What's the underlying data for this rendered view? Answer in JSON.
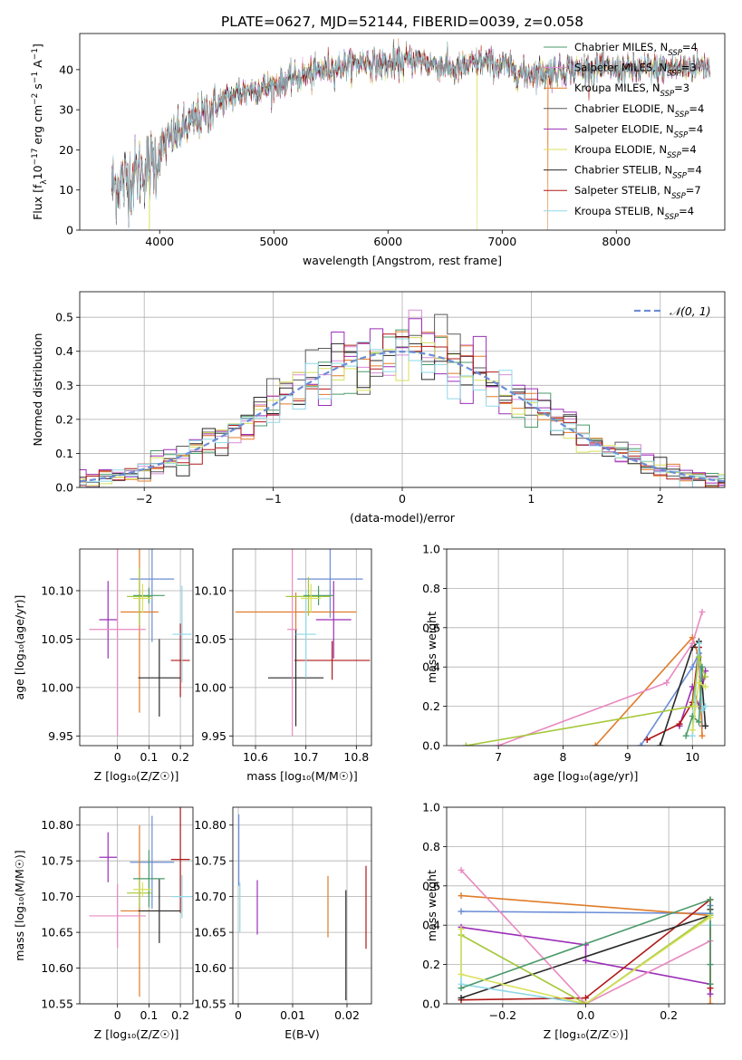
{
  "figure_title": "PLATE=0627, MJD=52144, FIBERID=0039, z=0.058",
  "colors": {
    "series": [
      "#4a9a6a",
      "#d98ad6",
      "#e07b28",
      "#5a5a5a",
      "#9b2fb8",
      "#d8e05a",
      "#2a2a2a",
      "#b01818",
      "#8fd8e8"
    ],
    "errorbars": [
      "#6b8ed6",
      "#e07b28",
      "#9b2fb8",
      "#b01818",
      "#2a2a2a",
      "#8fd8e8",
      "#e88ac0",
      "#a6c83a",
      "#4a9a6a",
      "#d8e05a"
    ],
    "gaussian": "#6b8ed6",
    "grid": "#b0b0b0"
  },
  "chart_data": [
    {
      "id": "spectrum",
      "type": "line",
      "title": "PLATE=0627, MJD=52144, FIBERID=0039, z=0.058",
      "xlabel": "wavelength [Angstrom, rest frame]",
      "ylabel_parts": [
        "Flux [f",
        "λ",
        "10",
        "−17",
        " erg cm",
        "−2",
        " s",
        "−1",
        " A",
        "−1",
        "]"
      ],
      "xlim": [
        3300,
        8950
      ],
      "ylim": [
        0,
        49
      ],
      "xticks": [
        4000,
        5000,
        6000,
        7000,
        8000
      ],
      "yticks": [
        0,
        10,
        20,
        30,
        40
      ],
      "grid": false,
      "legend_position": "upper-right",
      "continuum_anchors": {
        "x": [
          3580,
          3700,
          3850,
          3950,
          4050,
          4150,
          4300,
          4450,
          4600,
          4800,
          5000,
          5200,
          5400,
          5600,
          5800,
          6000,
          6200,
          6400,
          6600,
          6800,
          7000,
          7200,
          7400,
          7600,
          7800,
          8000,
          8200,
          8400,
          8600,
          8800
        ],
        "y": [
          11,
          12.5,
          15,
          17,
          22,
          24,
          27,
          30,
          33,
          35,
          36,
          38,
          39.5,
          41,
          42,
          41,
          42.5,
          41.5,
          40,
          42,
          41,
          39,
          39.5,
          40,
          40.5,
          40,
          40,
          40.5,
          40.5,
          41
        ]
      },
      "dropouts": [
        {
          "series": 5,
          "x": 3910,
          "y": 0
        },
        {
          "series": 5,
          "x": 6780,
          "y": 0
        },
        {
          "series": 2,
          "x": 7400,
          "y": 0
        }
      ],
      "legend": [
        {
          "label": "Chabrier MILES, N",
          "sub": "SSP",
          "count": "=4"
        },
        {
          "label": "Salpeter MILES, N",
          "sub": "SSP",
          "count": "=3"
        },
        {
          "label": "Kroupa MILES, N",
          "sub": "SSP",
          "count": "=3"
        },
        {
          "label": "Chabrier ELODIE, N",
          "sub": "SSP",
          "count": "=4"
        },
        {
          "label": "Salpeter ELODIE, N",
          "sub": "SSP",
          "count": "=4"
        },
        {
          "label": "Kroupa ELODIE, N",
          "sub": "SSP",
          "count": "=4"
        },
        {
          "label": "Chabrier STELIB, N",
          "sub": "SSP",
          "count": "=4"
        },
        {
          "label": "Salpeter STELIB, N",
          "sub": "SSP",
          "count": "=7"
        },
        {
          "label": "Kroupa STELIB, N",
          "sub": "SSP",
          "count": "=4"
        }
      ]
    },
    {
      "id": "residuals",
      "type": "histogram",
      "xlabel": "(data-model)/error",
      "ylabel": "Normed distribution",
      "xlim": [
        -2.5,
        2.5
      ],
      "ylim": [
        0,
        0.575
      ],
      "xticks": [
        -2,
        -1,
        0,
        1,
        2
      ],
      "xtick_labels": [
        "−2",
        "−1",
        "0",
        "1",
        "2"
      ],
      "yticks": [
        0.0,
        0.1,
        0.2,
        0.3,
        0.4,
        0.5
      ],
      "grid": true,
      "legend_position": "upper-right",
      "gaussian_label": "𝒩(0, 1)",
      "bin_width": 0.1
    },
    {
      "id": "age-vs-Z",
      "type": "errorbar",
      "xlabel": "Z [log₁₀(Z/Z☉)]",
      "ylabel": "age  [log₁₀(age/yr)]",
      "xlim": [
        -0.12,
        0.24
      ],
      "ylim": [
        9.94,
        10.143
      ],
      "xticks": [
        0.0,
        0.1,
        0.2
      ],
      "yticks": [
        9.95,
        10.0,
        10.05,
        10.1
      ],
      "grid": true,
      "points": [
        {
          "x": 0.11,
          "y": 10.112,
          "xerr": 0.07,
          "yerr": 0.065
        },
        {
          "x": 0.07,
          "y": 10.078,
          "xerr": 0.06,
          "yerr": 0.104
        },
        {
          "x": -0.03,
          "y": 10.07,
          "xerr": 0.028,
          "yerr": 0.04
        },
        {
          "x": 0.2,
          "y": 10.028,
          "xerr": 0.03,
          "yerr": 0.038
        },
        {
          "x": 0.133,
          "y": 10.01,
          "xerr": 0.067,
          "yerr": 0.04
        },
        {
          "x": 0.205,
          "y": 10.055,
          "xerr": 0.03,
          "yerr": 0.05
        },
        {
          "x": 0.0,
          "y": 10.06,
          "xerr": 0.09,
          "yerr": 0.11
        },
        {
          "x": 0.07,
          "y": 10.094,
          "xerr": 0.04,
          "yerr": 0.03
        },
        {
          "x": 0.1,
          "y": 10.095,
          "xerr": 0.05,
          "yerr": 0.008
        },
        {
          "x": 0.08,
          "y": 10.092,
          "xerr": 0.03,
          "yerr": 0.015
        }
      ]
    },
    {
      "id": "age-vs-mass",
      "type": "errorbar",
      "xlabel": "mass [log₁₀(M/M☉)]",
      "ylabel": "",
      "xlim": [
        10.555,
        10.83
      ],
      "ylim": [
        9.94,
        10.143
      ],
      "xticks": [
        10.6,
        10.7,
        10.8
      ],
      "yticks": [
        9.95,
        10.0,
        10.05,
        10.1
      ],
      "grid": true,
      "points": [
        {
          "x": 10.748,
          "y": 10.112,
          "xerr": 0.065,
          "yerr": 0.04
        },
        {
          "x": 10.68,
          "y": 10.078,
          "xerr": 0.12,
          "yerr": 0.02
        },
        {
          "x": 10.755,
          "y": 10.07,
          "xerr": 0.035,
          "yerr": 0.04
        },
        {
          "x": 10.752,
          "y": 10.028,
          "xerr": 0.075,
          "yerr": 0.02
        },
        {
          "x": 10.68,
          "y": 10.01,
          "xerr": 0.055,
          "yerr": 0.05
        },
        {
          "x": 10.7,
          "y": 10.055,
          "xerr": 0.02,
          "yerr": 0.045
        },
        {
          "x": 10.673,
          "y": 10.06,
          "xerr": 0.01,
          "yerr": 0.11
        },
        {
          "x": 10.705,
          "y": 10.094,
          "xerr": 0.045,
          "yerr": 0.02
        },
        {
          "x": 10.725,
          "y": 10.095,
          "xerr": 0.03,
          "yerr": 0.01
        },
        {
          "x": 10.71,
          "y": 10.092,
          "xerr": 0.02,
          "yerr": 0.015
        }
      ]
    },
    {
      "id": "weight-vs-age",
      "type": "line",
      "xlabel": "age  [log₁₀(age/yr)]",
      "ylabel": "mass weight",
      "xlim": [
        6.2,
        10.5
      ],
      "ylim": [
        0,
        1.0
      ],
      "xticks": [
        7,
        8,
        9,
        10
      ],
      "yticks": [
        0.0,
        0.2,
        0.4,
        0.6,
        0.8,
        1.0
      ],
      "grid": true,
      "series": [
        {
          "x": [
            9.2,
            10.0,
            10.1,
            10.15
          ],
          "y": [
            0.0,
            0.4,
            0.47,
            0.1
          ]
        },
        {
          "x": [
            8.5,
            10.0,
            10.1,
            10.15
          ],
          "y": [
            0.0,
            0.55,
            0.45,
            0.05
          ]
        },
        {
          "x": [
            9.8,
            10.0,
            10.1,
            10.2
          ],
          "y": [
            0.1,
            0.3,
            0.2,
            0.38
          ]
        },
        {
          "x": [
            9.3,
            9.8,
            10.0,
            10.1,
            10.15
          ],
          "y": [
            0.03,
            0.11,
            0.22,
            0.5,
            0.35
          ]
        },
        {
          "x": [
            9.5,
            10.0,
            10.1,
            10.2
          ],
          "y": [
            0.0,
            0.5,
            0.53,
            0.1
          ]
        },
        {
          "x": [
            10.0,
            10.1,
            10.15,
            10.2
          ],
          "y": [
            0.05,
            0.52,
            0.18,
            0.2
          ]
        },
        {
          "x": [
            7.0,
            9.6,
            10.0,
            10.15
          ],
          "y": [
            0.0,
            0.32,
            0.52,
            0.68
          ]
        },
        {
          "x": [
            6.5,
            10.0,
            10.1,
            10.2
          ],
          "y": [
            0.0,
            0.2,
            0.45,
            0.35
          ]
        },
        {
          "x": [
            9.9,
            10.0,
            10.1,
            10.15
          ],
          "y": [
            0.05,
            0.15,
            0.12,
            0.4
          ]
        },
        {
          "x": [
            10.0,
            10.05,
            10.1,
            10.2
          ],
          "y": [
            0.08,
            0.2,
            0.32,
            0.3
          ]
        }
      ]
    },
    {
      "id": "mass-vs-Z",
      "type": "errorbar",
      "xlabel": "Z [log₁₀(Z/Z☉)]",
      "ylabel": "mass [log₁₀(M/M☉)]",
      "xlim": [
        -0.12,
        0.24
      ],
      "ylim": [
        10.55,
        10.825
      ],
      "xticks": [
        0.0,
        0.1,
        0.2
      ],
      "yticks": [
        10.55,
        10.6,
        10.65,
        10.7,
        10.75,
        10.8
      ],
      "grid": true,
      "points": [
        {
          "x": 0.11,
          "y": 10.748,
          "xerr": 0.07,
          "yerr": 0.065
        },
        {
          "x": 0.07,
          "y": 10.68,
          "xerr": 0.06,
          "yerr": 0.12
        },
        {
          "x": -0.03,
          "y": 10.755,
          "xerr": 0.028,
          "yerr": 0.035
        },
        {
          "x": 0.2,
          "y": 10.752,
          "xerr": 0.03,
          "yerr": 0.075
        },
        {
          "x": 0.133,
          "y": 10.68,
          "xerr": 0.067,
          "yerr": 0.045
        },
        {
          "x": 0.205,
          "y": 10.7,
          "xerr": 0.03,
          "yerr": 0.03
        },
        {
          "x": 0.0,
          "y": 10.673,
          "xerr": 0.09,
          "yerr": 0.045
        },
        {
          "x": 0.07,
          "y": 10.705,
          "xerr": 0.04,
          "yerr": 0.02
        },
        {
          "x": 0.1,
          "y": 10.725,
          "xerr": 0.05,
          "yerr": 0.04
        },
        {
          "x": 0.08,
          "y": 10.71,
          "xerr": 0.03,
          "yerr": 0.01
        }
      ]
    },
    {
      "id": "mass-vs-ebv",
      "type": "errorbar",
      "xlabel": "E(B-V)",
      "ylabel": "",
      "xlim": [
        -0.001,
        0.0245
      ],
      "ylim": [
        10.55,
        10.825
      ],
      "xticks": [
        0.0,
        0.01,
        0.02
      ],
      "yticks": [
        10.55,
        10.6,
        10.65,
        10.7,
        10.75,
        10.8
      ],
      "grid": true,
      "points": [
        {
          "x": 0.0001,
          "y": 10.765,
          "xerr": 0,
          "yerr": 0.05
        },
        {
          "x": 0.0165,
          "y": 10.686,
          "xerr": 0,
          "yerr": 0.043
        },
        {
          "x": 0.0035,
          "y": 10.685,
          "xerr": 0,
          "yerr": 0.038
        },
        {
          "x": 0.0235,
          "y": 10.685,
          "xerr": 0,
          "yerr": 0.058
        },
        {
          "x": 0.0198,
          "y": 10.632,
          "xerr": 0,
          "yerr": 0.077
        },
        {
          "x": 0.0003,
          "y": 10.685,
          "xerr": 0,
          "yerr": 0.035
        }
      ]
    },
    {
      "id": "weight-vs-Z",
      "type": "line",
      "xlabel": "Z [log₁₀(Z/Z☉)]",
      "ylabel": "mass weight",
      "xlim": [
        -0.335,
        0.335
      ],
      "ylim": [
        0,
        1.0
      ],
      "xticks": [
        -0.2,
        0.0,
        0.2
      ],
      "xtick_labels": [
        "−0.2",
        "0.0",
        "0.2"
      ],
      "yticks": [
        0.0,
        0.2,
        0.4,
        0.6,
        0.8,
        1.0
      ],
      "grid": true,
      "series": [
        {
          "x": [
            -0.3,
            0.3,
            0.3
          ],
          "y": [
            0.47,
            0.46,
            0.5
          ]
        },
        {
          "x": [
            -0.3,
            0.3,
            0.3
          ],
          "y": [
            0.55,
            0.45,
            0.0
          ]
        },
        {
          "x": [
            -0.3,
            0.0,
            0.0,
            0.3,
            0.3
          ],
          "y": [
            0.39,
            0.3,
            0.22,
            0.1,
            0.05
          ]
        },
        {
          "x": [
            -0.3,
            0.0,
            0.3,
            0.3,
            0.3
          ],
          "y": [
            0.02,
            0.03,
            0.53,
            0.1,
            0.08
          ]
        },
        {
          "x": [
            -0.3,
            0.3,
            0.3
          ],
          "y": [
            0.03,
            0.45,
            0.48
          ]
        },
        {
          "x": [
            -0.3,
            -0.3,
            0.0,
            0.3,
            0.3
          ],
          "y": [
            0.35,
            0.1,
            0.0,
            0.45,
            0.4
          ]
        },
        {
          "x": [
            -0.3,
            0.0,
            0.3,
            0.3
          ],
          "y": [
            0.68,
            0.0,
            0.32,
            0.2
          ]
        },
        {
          "x": [
            -0.3,
            0.0,
            0.3
          ],
          "y": [
            0.35,
            0.0,
            0.45
          ]
        },
        {
          "x": [
            -0.3,
            0.3,
            0.3,
            0.3
          ],
          "y": [
            0.08,
            0.53,
            0.2,
            0.1
          ]
        },
        {
          "x": [
            -0.3,
            -0.3,
            0.0,
            0.3
          ],
          "y": [
            0.38,
            0.15,
            0.0,
            0.44
          ]
        }
      ]
    }
  ]
}
